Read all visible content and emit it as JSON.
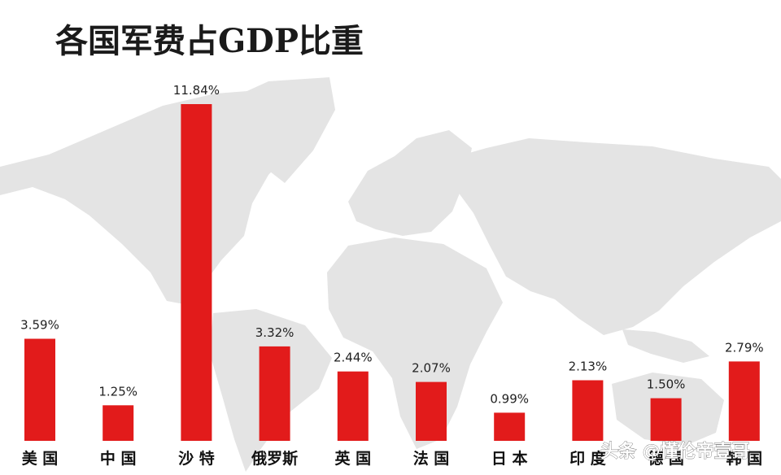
{
  "colors": {
    "bar": "#e21b1b",
    "map": "#e4e4e4",
    "background": "#ffffff"
  },
  "watermark": "头条 @懂伦帝壹哥",
  "chart_data": {
    "type": "bar",
    "title": "各国军费占GDP比重",
    "categories": [
      "美 国",
      "中 国",
      "沙 特",
      "俄罗斯",
      "英 国",
      "法 国",
      "日 本",
      "印 度",
      "德 国",
      "韩 国"
    ],
    "values": [
      3.59,
      1.25,
      11.84,
      3.32,
      2.44,
      2.07,
      0.99,
      2.13,
      1.5,
      2.79
    ],
    "value_labels": [
      "3.59%",
      "1.25%",
      "11.84%",
      "3.32%",
      "2.44%",
      "2.07%",
      "0.99%",
      "2.13%",
      "1.50%",
      "2.79%"
    ],
    "xlabel": "",
    "ylabel": "",
    "ylim": [
      0,
      12
    ],
    "grid": false,
    "legend": "none"
  }
}
